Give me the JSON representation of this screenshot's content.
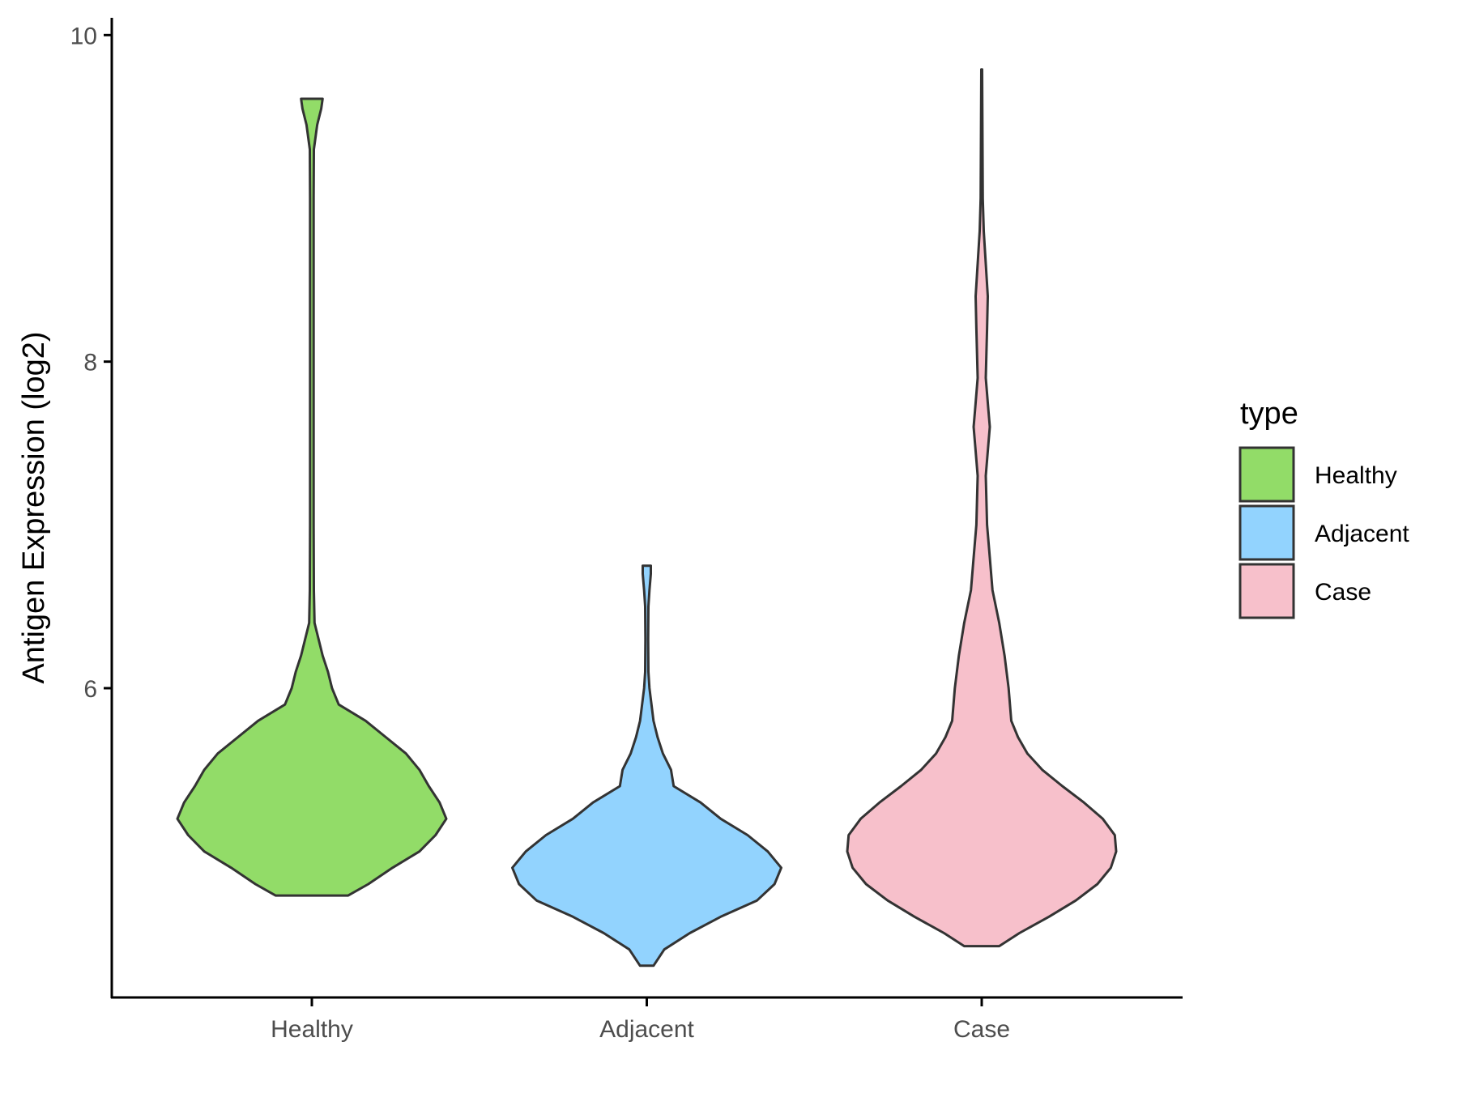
{
  "chart_data": {
    "type": "violin",
    "title": "",
    "xlabel": "",
    "ylabel": "Antigen Expression (log2)",
    "ylim": [
      4.0,
      10.1
    ],
    "yticks": [
      6,
      8,
      10
    ],
    "categories": [
      "Healthy",
      "Adjacent",
      "Case"
    ],
    "grid": false,
    "legend": {
      "title": "type",
      "position": "right",
      "entries": [
        {
          "label": "Healthy",
          "color": "#92dc68"
        },
        {
          "label": "Adjacent",
          "color": "#92d3fe"
        },
        {
          "label": "Case",
          "color": "#f7c0cb"
        }
      ]
    },
    "series": [
      {
        "name": "Healthy",
        "color": "#92dc68",
        "min": 4.73,
        "max": 9.61,
        "density": [
          [
            4.73,
            0.27
          ],
          [
            4.8,
            0.42
          ],
          [
            4.9,
            0.6
          ],
          [
            5.0,
            0.8
          ],
          [
            5.1,
            0.92
          ],
          [
            5.2,
            1.0
          ],
          [
            5.3,
            0.95
          ],
          [
            5.4,
            0.87
          ],
          [
            5.5,
            0.8
          ],
          [
            5.6,
            0.7
          ],
          [
            5.7,
            0.55
          ],
          [
            5.8,
            0.4
          ],
          [
            5.9,
            0.2
          ],
          [
            6.0,
            0.15
          ],
          [
            6.1,
            0.12
          ],
          [
            6.2,
            0.08
          ],
          [
            6.3,
            0.05
          ],
          [
            6.4,
            0.02
          ],
          [
            6.6,
            0.015
          ],
          [
            7.0,
            0.013
          ],
          [
            8.0,
            0.013
          ],
          [
            9.0,
            0.013
          ],
          [
            9.3,
            0.015
          ],
          [
            9.45,
            0.04
          ],
          [
            9.55,
            0.07
          ],
          [
            9.61,
            0.08
          ]
        ]
      },
      {
        "name": "Adjacent",
        "color": "#92d3fe",
        "min": 4.3,
        "max": 6.75,
        "density": [
          [
            4.3,
            0.05
          ],
          [
            4.4,
            0.13
          ],
          [
            4.5,
            0.32
          ],
          [
            4.6,
            0.55
          ],
          [
            4.7,
            0.82
          ],
          [
            4.8,
            0.95
          ],
          [
            4.9,
            1.0
          ],
          [
            5.0,
            0.9
          ],
          [
            5.1,
            0.75
          ],
          [
            5.2,
            0.55
          ],
          [
            5.3,
            0.4
          ],
          [
            5.4,
            0.2
          ],
          [
            5.5,
            0.18
          ],
          [
            5.6,
            0.12
          ],
          [
            5.7,
            0.08
          ],
          [
            5.8,
            0.05
          ],
          [
            5.9,
            0.035
          ],
          [
            6.0,
            0.02
          ],
          [
            6.1,
            0.012
          ],
          [
            6.3,
            0.01
          ],
          [
            6.5,
            0.012
          ],
          [
            6.6,
            0.02
          ],
          [
            6.7,
            0.03
          ],
          [
            6.75,
            0.03
          ]
        ]
      },
      {
        "name": "Case",
        "color": "#f7c0cb",
        "min": 4.42,
        "max": 9.79,
        "density": [
          [
            4.42,
            0.13
          ],
          [
            4.5,
            0.28
          ],
          [
            4.6,
            0.5
          ],
          [
            4.7,
            0.7
          ],
          [
            4.8,
            0.86
          ],
          [
            4.9,
            0.96
          ],
          [
            5.0,
            1.0
          ],
          [
            5.1,
            0.99
          ],
          [
            5.2,
            0.9
          ],
          [
            5.3,
            0.76
          ],
          [
            5.4,
            0.6
          ],
          [
            5.5,
            0.45
          ],
          [
            5.6,
            0.34
          ],
          [
            5.7,
            0.27
          ],
          [
            5.8,
            0.22
          ],
          [
            6.0,
            0.2
          ],
          [
            6.2,
            0.17
          ],
          [
            6.4,
            0.13
          ],
          [
            6.6,
            0.08
          ],
          [
            6.8,
            0.06
          ],
          [
            7.0,
            0.04
          ],
          [
            7.3,
            0.03
          ],
          [
            7.5,
            0.05
          ],
          [
            7.6,
            0.06
          ],
          [
            7.7,
            0.05
          ],
          [
            7.9,
            0.03
          ],
          [
            8.05,
            0.035
          ],
          [
            8.2,
            0.04
          ],
          [
            8.4,
            0.045
          ],
          [
            8.6,
            0.03
          ],
          [
            8.8,
            0.015
          ],
          [
            9.0,
            0.008
          ],
          [
            9.5,
            0.005
          ],
          [
            9.79,
            0.003
          ]
        ]
      }
    ]
  }
}
